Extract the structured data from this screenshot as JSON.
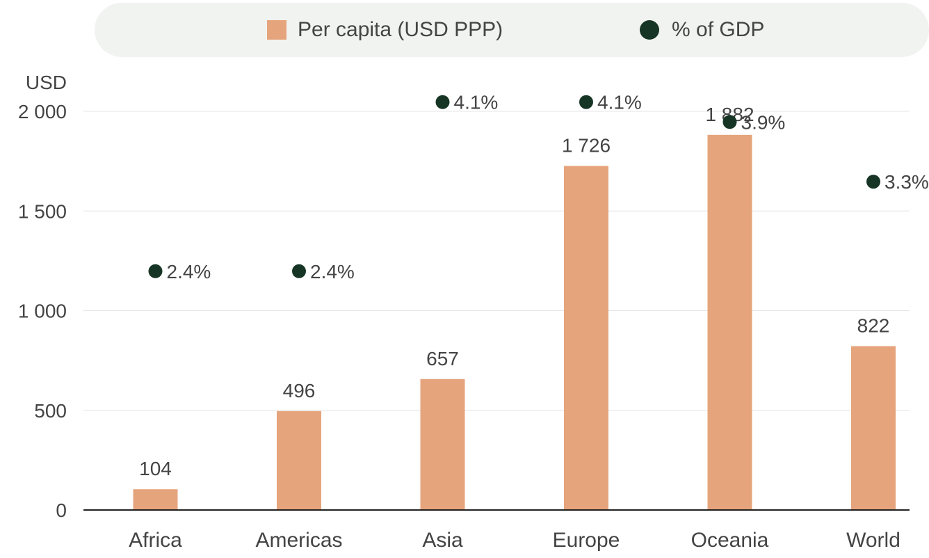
{
  "chart_data": {
    "type": "bar",
    "legend": {
      "bar_label": "Per capita (USD PPP)",
      "dot_label": "% of GDP",
      "placement": "top"
    },
    "y_unit_label": "USD",
    "ylim": [
      0,
      2000
    ],
    "y_ticks": [
      {
        "value": 0,
        "label": "0"
      },
      {
        "value": 500,
        "label": "500"
      },
      {
        "value": 1000,
        "label": "1 000"
      },
      {
        "value": 1500,
        "label": "1 500"
      },
      {
        "value": 2000,
        "label": "2 000"
      }
    ],
    "grid": true,
    "categories": [
      "Africa",
      "Americas",
      "Asia",
      "Europe",
      "Oceania",
      "World"
    ],
    "series": [
      {
        "name": "Per capita (USD PPP)",
        "kind": "bar",
        "values": [
          104,
          496,
          657,
          1726,
          1882,
          822
        ],
        "labels": [
          "104",
          "496",
          "657",
          "1 726",
          "1 882",
          "822"
        ]
      },
      {
        "name": "% of GDP",
        "kind": "dot",
        "values": [
          2.4,
          2.4,
          4.1,
          4.1,
          3.9,
          3.3
        ],
        "labels": [
          "2.4%",
          "2.4%",
          "4.1%",
          "4.1%",
          "3.9%",
          "3.3%"
        ]
      }
    ],
    "colors": {
      "bar": "#e6a47c",
      "dot": "#163525",
      "grid": "#e4e4e4",
      "axis": "#222222",
      "text": "#444444",
      "legend_bg": "#f1f3f1"
    }
  }
}
